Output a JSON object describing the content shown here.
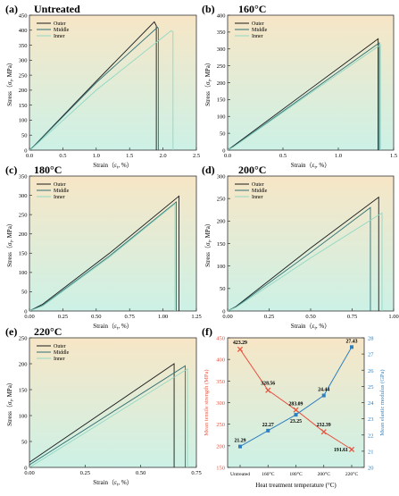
{
  "colors": {
    "outer": "#1b1b1b",
    "middle": "#2f6f73",
    "inner": "#8fd9c4",
    "strength": "#e8533f",
    "modulus": "#2e7fc0",
    "bg_top": "#f7e6c6",
    "bg_bottom": "#cdf1e6"
  },
  "chart_data": [
    {
      "type": "line",
      "panel": "(a)",
      "title": "Untreated",
      "xlabel": "Strain (ε_t, %)",
      "ylabel": "Stress (σ_t, MPa)",
      "xlim": [
        0,
        2.5
      ],
      "ylim": [
        0,
        450
      ],
      "xticks": [
        "0.0",
        "0.5",
        "1.0",
        "1.5",
        "2.0",
        "2.5"
      ],
      "yticks": [
        "0",
        "50",
        "100",
        "150",
        "200",
        "250",
        "300",
        "350",
        "400",
        "450"
      ],
      "legend": [
        "Outer",
        "Middle",
        "Inner"
      ],
      "series": [
        {
          "name": "Outer",
          "x": [
            0,
            0.05,
            1.0,
            1.87,
            1.9,
            1.9
          ],
          "y": [
            0,
            10,
            230,
            428,
            415,
            0
          ]
        },
        {
          "name": "Middle",
          "x": [
            0,
            0.05,
            1.0,
            1.92,
            1.93,
            1.93
          ],
          "y": [
            0,
            9,
            225,
            410,
            405,
            0
          ]
        },
        {
          "name": "Inner",
          "x": [
            0,
            0.05,
            1.0,
            2.12,
            2.15,
            2.15
          ],
          "y": [
            0,
            8,
            200,
            398,
            395,
            0
          ]
        }
      ]
    },
    {
      "type": "line",
      "panel": "(b)",
      "title": "160°C",
      "xlabel": "Strain (ε_t, %)",
      "ylabel": "",
      "xlim": [
        0,
        1.5
      ],
      "ylim": [
        0,
        400
      ],
      "xticks": [
        "0.0",
        "0.5",
        "1.0",
        "1.5"
      ],
      "yticks": [
        "0",
        "50",
        "100",
        "150",
        "200",
        "250",
        "300",
        "350",
        "400"
      ],
      "legend": [
        "Outer",
        "Middle",
        "Inner"
      ],
      "series": [
        {
          "name": "Outer",
          "x": [
            0,
            0.05,
            0.7,
            1.36,
            1.36
          ],
          "y": [
            0,
            12,
            170,
            330,
            0
          ]
        },
        {
          "name": "Middle",
          "x": [
            0,
            0.05,
            0.7,
            1.37,
            1.37
          ],
          "y": [
            0,
            10,
            162,
            318,
            0
          ]
        },
        {
          "name": "Inner",
          "x": [
            0,
            0.05,
            0.7,
            1.38,
            1.38
          ],
          "y": [
            0,
            9,
            158,
            312,
            0
          ]
        }
      ]
    },
    {
      "type": "line",
      "panel": "(c)",
      "title": "180°C",
      "xlabel": "Strain (ε_t, %)",
      "ylabel": "Stress (σ_t, MPa)",
      "xlim": [
        0,
        1.25
      ],
      "ylim": [
        0,
        350
      ],
      "xticks": [
        "0.00",
        "0.25",
        "0.50",
        "0.75",
        "1.00",
        "1.25"
      ],
      "yticks": [
        "0",
        "50",
        "100",
        "150",
        "200",
        "250",
        "300",
        "350"
      ],
      "legend": [
        "Outer",
        "Middle",
        "Inner"
      ],
      "series": [
        {
          "name": "Outer",
          "x": [
            0,
            0.1,
            0.6,
            1.12,
            1.12
          ],
          "y": [
            0,
            18,
            150,
            298,
            0
          ]
        },
        {
          "name": "Middle",
          "x": [
            0,
            0.1,
            0.6,
            1.1,
            1.1
          ],
          "y": [
            0,
            15,
            143,
            283,
            0
          ]
        },
        {
          "name": "Inner",
          "x": [
            0,
            0.1,
            0.6,
            1.09,
            1.09
          ],
          "y": [
            0,
            13,
            140,
            278,
            0
          ]
        }
      ]
    },
    {
      "type": "line",
      "panel": "(d)",
      "title": "200°C",
      "xlabel": "Strain (ε_t, %)",
      "ylabel": "",
      "xlim": [
        0,
        1.0
      ],
      "ylim": [
        0,
        300
      ],
      "xticks": [
        "0.00",
        "0.25",
        "0.50",
        "0.75",
        "1.00"
      ],
      "yticks": [
        "0",
        "50",
        "100",
        "150",
        "200",
        "250",
        "300"
      ],
      "legend": [
        "Outer",
        "Middle",
        "Inner"
      ],
      "series": [
        {
          "name": "Outer",
          "x": [
            0,
            0.05,
            0.5,
            0.91,
            0.91
          ],
          "y": [
            0,
            10,
            140,
            253,
            0
          ]
        },
        {
          "name": "Middle",
          "x": [
            0,
            0.05,
            0.5,
            0.86,
            0.86
          ],
          "y": [
            0,
            9,
            130,
            230,
            0
          ]
        },
        {
          "name": "Inner",
          "x": [
            0,
            0.05,
            0.5,
            0.93,
            0.93
          ],
          "y": [
            0,
            8,
            118,
            218,
            0
          ]
        }
      ]
    },
    {
      "type": "line",
      "panel": "(e)",
      "title": "220°C",
      "xlabel": "Strain (ε_t, %)",
      "ylabel": "Stress (σ_t, MPa)",
      "xlim": [
        0,
        0.75
      ],
      "ylim": [
        0,
        250
      ],
      "xticks": [
        "0.00",
        "0.25",
        "0.50",
        "0.75"
      ],
      "yticks": [
        "0",
        "50",
        "100",
        "150",
        "200",
        "250"
      ],
      "legend": [
        "Outer",
        "Middle",
        "Inner"
      ],
      "series": [
        {
          "name": "Outer",
          "x": [
            0,
            0.65,
            0.65
          ],
          "y": [
            10,
            200,
            0
          ]
        },
        {
          "name": "Middle",
          "x": [
            0,
            0.7,
            0.7
          ],
          "y": [
            5,
            196,
            0
          ]
        },
        {
          "name": "Inner",
          "x": [
            0,
            0.71,
            0.71
          ],
          "y": [
            0,
            190,
            0
          ]
        }
      ]
    },
    {
      "type": "line",
      "panel": "(f)",
      "xlabel": "Heat treatment temperature (°C)",
      "ylabel": "Mean tensile strength (MPa)",
      "ylabel_right": "Mean elastic modulus (GPa)",
      "categories": [
        "Untreated",
        "160°C",
        "180°C",
        "200°C",
        "220°C"
      ],
      "ylim": [
        150,
        450
      ],
      "ylim_right": [
        20,
        28
      ],
      "yticks": [
        "150",
        "200",
        "250",
        "300",
        "350",
        "400",
        "450"
      ],
      "yticks_right": [
        "20",
        "21",
        "22",
        "23",
        "24",
        "25",
        "26",
        "27",
        "28"
      ],
      "series": [
        {
          "name": "Mean tensile strength",
          "axis": "left",
          "values": [
            423.29,
            328.56,
            283.09,
            232.39,
            191.61
          ],
          "labels": [
            "423.29",
            "328.56",
            "283.09",
            "232.39",
            "191.61"
          ]
        },
        {
          "name": "Mean elastic modulus",
          "axis": "right",
          "values": [
            21.29,
            22.27,
            23.25,
            24.44,
            27.43
          ],
          "labels": [
            "21.29",
            "22.27",
            "23.25",
            "24.44",
            "27.43"
          ]
        }
      ]
    }
  ]
}
